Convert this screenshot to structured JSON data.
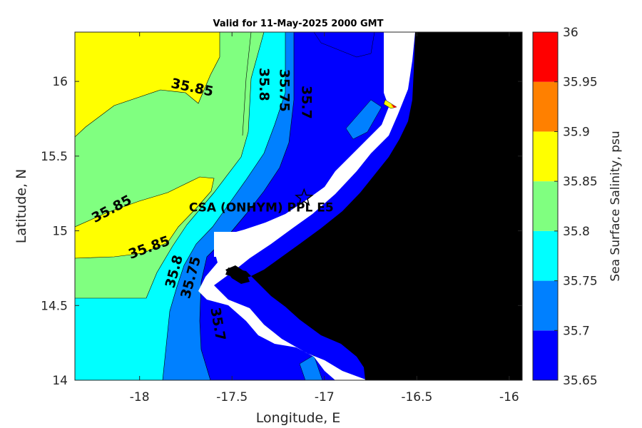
{
  "chart_data": {
    "type": "heatmap",
    "title": "Valid for 11-May-2025 2000 GMT",
    "xlabel": "Longitude, E",
    "ylabel": "Latitude, N",
    "xlim": [
      -18.35,
      -15.93
    ],
    "ylim": [
      14.0,
      16.33
    ],
    "x_ticks": [
      "-18",
      "-17.5",
      "-17",
      "-16.5",
      "-16"
    ],
    "y_ticks": [
      "16",
      "15.5",
      "15",
      "14.5",
      "14"
    ],
    "colorbar": {
      "label": "Sea Surface Salinity, psu",
      "ticks": [
        "36",
        "35.95",
        "35.9",
        "35.85",
        "35.8",
        "35.75",
        "35.7",
        "35.65"
      ],
      "range": [
        35.65,
        36.0
      ],
      "bands": [
        {
          "from": 35.65,
          "to": 35.7,
          "color": "#0000ff"
        },
        {
          "from": 35.7,
          "to": 35.75,
          "color": "#0080ff"
        },
        {
          "from": 35.75,
          "to": 35.8,
          "color": "#00ffff"
        },
        {
          "from": 35.8,
          "to": 35.85,
          "color": "#80ff80"
        },
        {
          "from": 35.85,
          "to": 35.9,
          "color": "#ffff00"
        },
        {
          "from": 35.9,
          "to": 35.95,
          "color": "#ff8000"
        },
        {
          "from": 35.95,
          "to": 36.0,
          "color": "#ff0000"
        }
      ]
    },
    "contour_labels": [
      {
        "text": "35.85",
        "lon": -17.72,
        "lat": 15.93
      },
      {
        "text": "35.8",
        "lon": -17.35,
        "lat": 15.98
      },
      {
        "text": "35.75",
        "lon": -17.24,
        "lat": 15.94
      },
      {
        "text": "35.7",
        "lon": -17.12,
        "lat": 15.86
      },
      {
        "text": "35.85",
        "lon": -18.14,
        "lat": 15.12
      },
      {
        "text": "35.85",
        "lon": -17.94,
        "lat": 14.86
      },
      {
        "text": "35.8",
        "lon": -17.79,
        "lat": 14.72
      },
      {
        "text": "35.75",
        "lon": -17.7,
        "lat": 14.68
      },
      {
        "text": "35.7",
        "lon": -17.6,
        "lat": 14.37
      }
    ],
    "site": {
      "label": "CSA (ONHYM) PPL E5",
      "lon": -17.11,
      "lat": 15.22,
      "marker": "star"
    },
    "land_color": "#000000",
    "mask_color": "#ffffff"
  }
}
